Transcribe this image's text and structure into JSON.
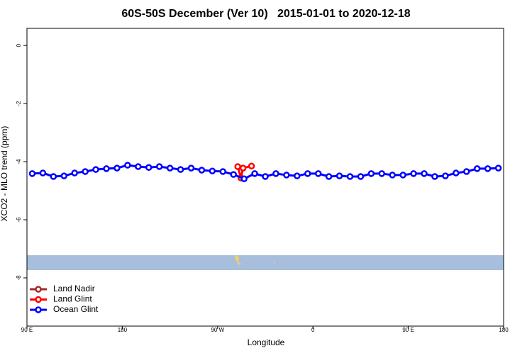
{
  "chart_data": {
    "type": "line",
    "title": "60S-50S December (Ver 10)   2015-01-01 to 2020-12-18",
    "x_label": "Longitude",
    "y_label": "XCO2 - MLO trend (ppm)",
    "xlim": [
      90,
      540
    ],
    "xticks": [
      {
        "value": 90,
        "label": "90 E"
      },
      {
        "value": 180,
        "label": "180"
      },
      {
        "value": 270,
        "label": "90 W"
      },
      {
        "value": 360,
        "label": "0"
      },
      {
        "value": 450,
        "label": "90 E"
      },
      {
        "value": 540,
        "label": "180"
      }
    ],
    "ylim": [
      -9.66,
      0.59
    ],
    "yticks": [
      0,
      -2,
      -4,
      -6,
      -8
    ],
    "legend": "bottom-left",
    "series": [
      {
        "name": "Land Nadir",
        "color": "#a52a2a",
        "x": [],
        "values": []
      },
      {
        "name": "Land Glint",
        "color": "#ff0000",
        "x": [
          289,
          292,
          294,
          302
        ],
        "values": [
          -4.17,
          -4.56,
          -4.22,
          -4.15
        ]
      },
      {
        "name": "Ocean Glint",
        "color": "#0000ff",
        "x": [
          95,
          105,
          115,
          125,
          135,
          145,
          155,
          165,
          175,
          185,
          195,
          205,
          215,
          225,
          235,
          245,
          255,
          265,
          275,
          285,
          295,
          305,
          315,
          325,
          335,
          345,
          355,
          365,
          375,
          385,
          395,
          405,
          415,
          425,
          435,
          445,
          455,
          465,
          475,
          485,
          495,
          505,
          515,
          525,
          535
        ],
        "values": [
          -4.41,
          -4.39,
          -4.51,
          -4.49,
          -4.39,
          -4.34,
          -4.27,
          -4.24,
          -4.22,
          -4.12,
          -4.17,
          -4.2,
          -4.17,
          -4.22,
          -4.27,
          -4.22,
          -4.29,
          -4.32,
          -4.34,
          -4.44,
          -4.59,
          -4.41,
          -4.51,
          -4.41,
          -4.46,
          -4.49,
          -4.41,
          -4.41,
          -4.51,
          -4.49,
          -4.51,
          -4.51,
          -4.41,
          -4.41,
          -4.46,
          -4.46,
          -4.41,
          -4.41,
          -4.51,
          -4.49,
          -4.39,
          -4.34,
          -4.24,
          -4.24,
          -4.22
        ]
      }
    ]
  }
}
